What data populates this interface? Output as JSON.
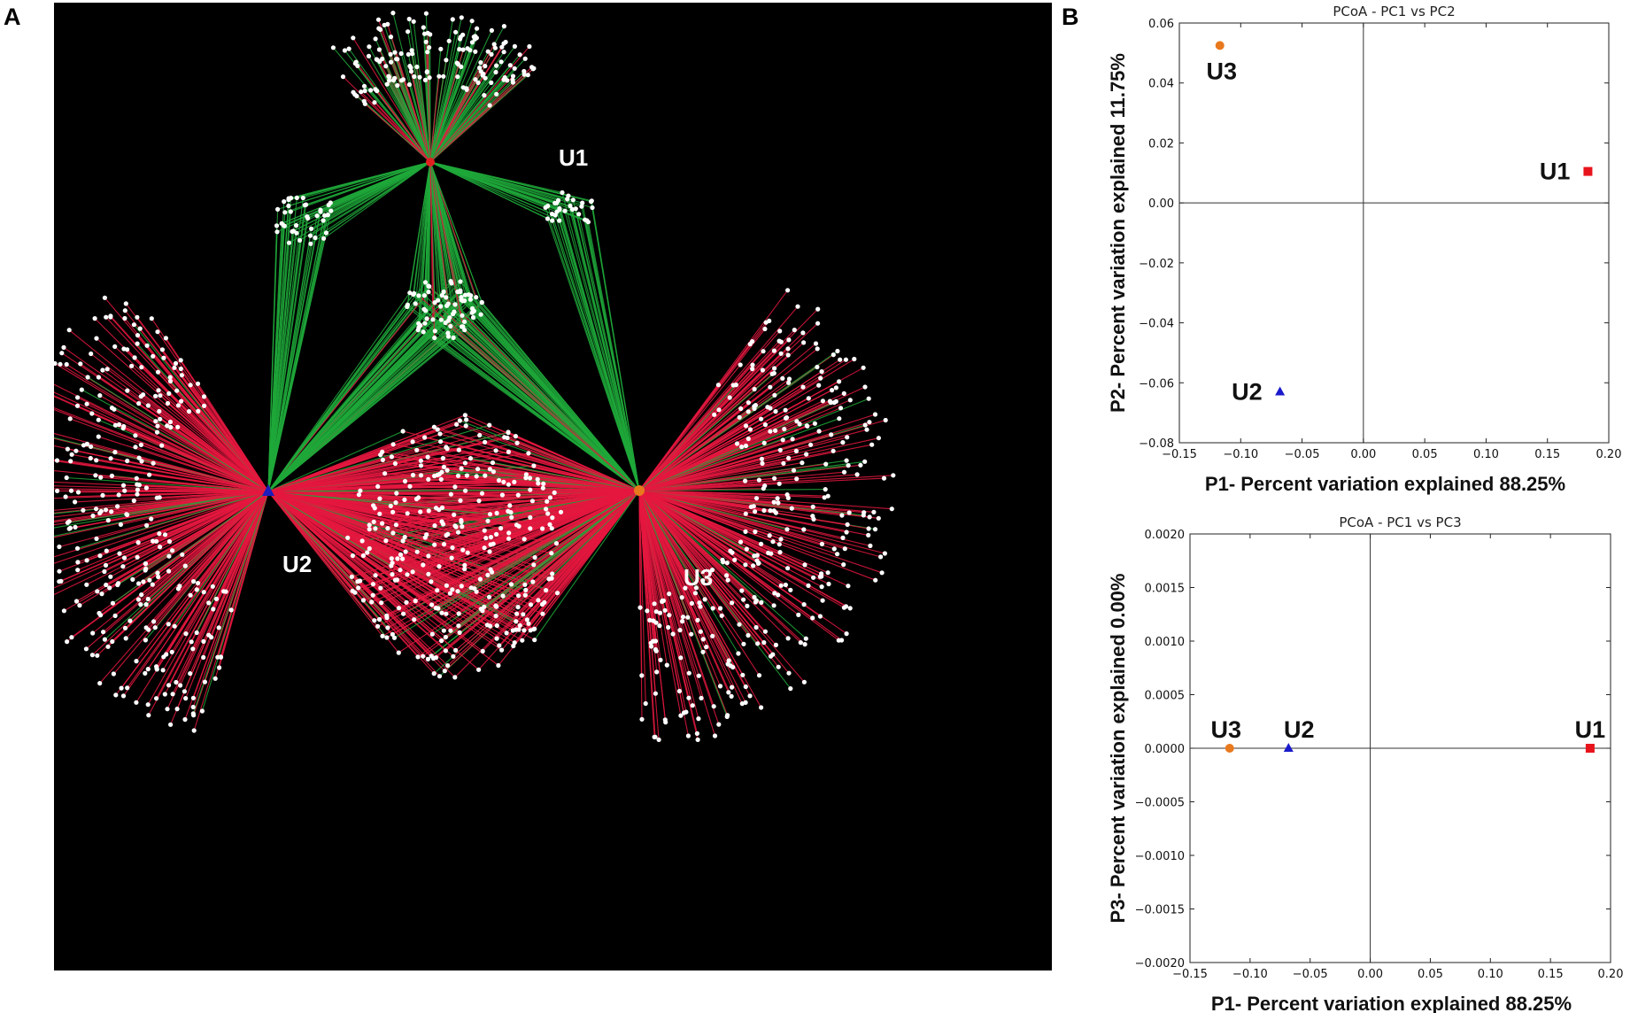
{
  "panels": {
    "a": "A",
    "b": "B"
  },
  "network": {
    "background": "#000000",
    "edge_colors": {
      "red": "#e5173f",
      "green": "#1fa83a"
    },
    "node_color": "#ffffff",
    "hubs": [
      {
        "label": "U1",
        "marker": "circle",
        "color": "#e02020"
      },
      {
        "label": "U2",
        "marker": "triangle",
        "color": "#1d1dbb"
      },
      {
        "label": "U3",
        "marker": "circle",
        "color": "#e8791d"
      }
    ]
  },
  "chart_data": [
    {
      "type": "scatter",
      "title": "PCoA - PC1 vs PC2",
      "xlabel": "P1- Percent variation explained 88.25%",
      "ylabel": "P2- Percent variation explained 11.75%",
      "xlim": [
        -0.15,
        0.2
      ],
      "ylim": [
        -0.08,
        0.06
      ],
      "xticks": [
        "−0.15",
        "−0.10",
        "−0.05",
        "0.00",
        "0.05",
        "0.10",
        "0.15",
        "0.20"
      ],
      "yticks": [
        "−0.08",
        "−0.06",
        "−0.04",
        "−0.02",
        "0.00",
        "0.02",
        "0.04",
        "0.06"
      ],
      "zero_lines": true,
      "points": [
        {
          "label": "U1",
          "x": 0.183,
          "y": 0.0105,
          "marker": "square",
          "color": "#e8141c"
        },
        {
          "label": "U2",
          "x": -0.068,
          "y": -0.063,
          "marker": "triangle",
          "color": "#1a1acc"
        },
        {
          "label": "U3",
          "x": -0.117,
          "y": 0.0525,
          "marker": "circle",
          "color": "#e8791d"
        }
      ]
    },
    {
      "type": "scatter",
      "title": "PCoA - PC1 vs PC3",
      "xlabel": "P1- Percent variation explained 88.25%",
      "ylabel": "P3- Percent variation explained 0.00%",
      "xlim": [
        -0.15,
        0.2
      ],
      "ylim": [
        -0.002,
        0.002
      ],
      "xticks": [
        "−0.15",
        "−0.10",
        "−0.05",
        "0.00",
        "0.05",
        "0.10",
        "0.15",
        "0.20"
      ],
      "yticks": [
        "−0.0020",
        "−0.0015",
        "−0.0010",
        "−0.0005",
        "0.0000",
        "0.0005",
        "0.0010",
        "0.0015",
        "0.0020"
      ],
      "zero_lines": true,
      "points": [
        {
          "label": "U1",
          "x": 0.183,
          "y": 0.0,
          "marker": "square",
          "color": "#e8141c"
        },
        {
          "label": "U2",
          "x": -0.068,
          "y": 0.0,
          "marker": "triangle",
          "color": "#1a1acc"
        },
        {
          "label": "U3",
          "x": -0.117,
          "y": 0.0,
          "marker": "circle",
          "color": "#e8791d"
        }
      ]
    }
  ]
}
